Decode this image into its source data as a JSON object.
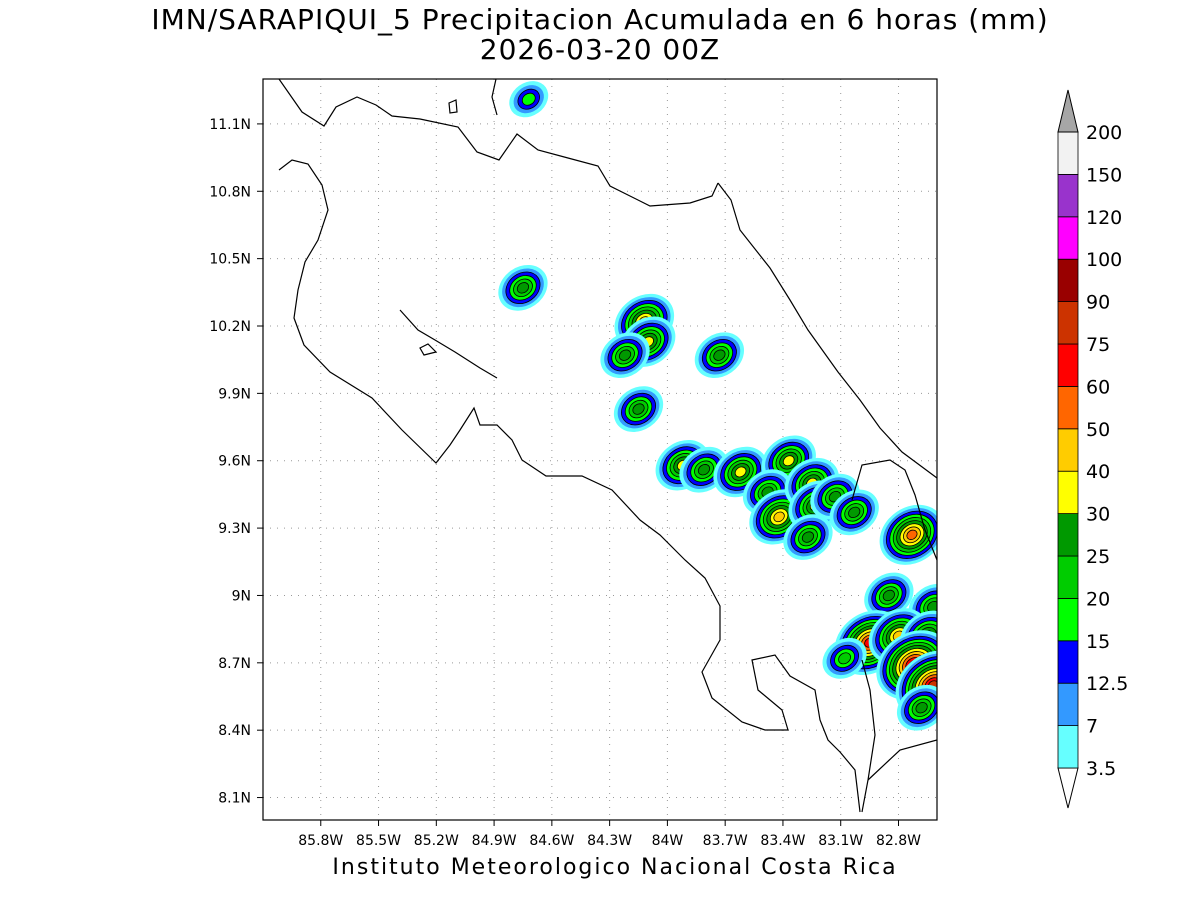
{
  "title": {
    "line1": "IMN/SARAPIQUI_5 Precipitacion Acumulada en 6 horas (mm)",
    "line2": "2026-03-20 00Z"
  },
  "footer": "Instituto Meteorologico Nacional Costa Rica",
  "map": {
    "lon_range": [
      -86.1,
      -82.6
    ],
    "lat_range": [
      8.0,
      11.3
    ],
    "lon_tick_labels": [
      "85.8W",
      "85.5W",
      "85.2W",
      "84.9W",
      "84.6W",
      "84.3W",
      "84W",
      "83.7W",
      "83.4W",
      "83.1W",
      "82.8W"
    ],
    "lat_tick_labels": [
      "11.1N",
      "10.8N",
      "10.5N",
      "10.2N",
      "9.9N",
      "9.6N",
      "9.3N",
      "9N",
      "8.7N",
      "8.4N",
      "8.1N"
    ],
    "grid": true
  },
  "colorbar": {
    "labels": [
      "3.5",
      "7",
      "12.5",
      "15",
      "20",
      "25",
      "30",
      "40",
      "50",
      "60",
      "75",
      "90",
      "100",
      "120",
      "150",
      "200"
    ],
    "colors": [
      "#ffffff",
      "#66ffff",
      "#3399ff",
      "#0000ff",
      "#00ff00",
      "#00cc00",
      "#009900",
      "#ffff00",
      "#ffcc00",
      "#ff6600",
      "#ff0000",
      "#cc3300",
      "#990000",
      "#ff00ff",
      "#9933cc",
      "#f2f2f2",
      "#a6a6a6"
    ]
  },
  "precip_cells": [
    {
      "lon": -84.72,
      "lat": 11.21,
      "intensity": "15"
    },
    {
      "lon": -84.75,
      "lat": 10.37,
      "intensity": "25"
    },
    {
      "lon": -84.12,
      "lat": 10.22,
      "intensity": "40"
    },
    {
      "lon": -84.1,
      "lat": 10.13,
      "intensity": "30"
    },
    {
      "lon": -84.22,
      "lat": 10.07,
      "intensity": "25"
    },
    {
      "lon": -83.73,
      "lat": 10.07,
      "intensity": "25"
    },
    {
      "lon": -84.15,
      "lat": 9.83,
      "intensity": "25"
    },
    {
      "lon": -83.92,
      "lat": 9.58,
      "intensity": "30"
    },
    {
      "lon": -83.81,
      "lat": 9.56,
      "intensity": "25"
    },
    {
      "lon": -83.62,
      "lat": 9.55,
      "intensity": "30"
    },
    {
      "lon": -83.37,
      "lat": 9.6,
      "intensity": "30"
    },
    {
      "lon": -83.48,
      "lat": 9.46,
      "intensity": "25"
    },
    {
      "lon": -83.42,
      "lat": 9.35,
      "intensity": "40"
    },
    {
      "lon": -83.25,
      "lat": 9.5,
      "intensity": "30"
    },
    {
      "lon": -83.23,
      "lat": 9.4,
      "intensity": "30"
    },
    {
      "lon": -83.13,
      "lat": 9.44,
      "intensity": "25"
    },
    {
      "lon": -83.27,
      "lat": 9.26,
      "intensity": "25"
    },
    {
      "lon": -83.03,
      "lat": 9.37,
      "intensity": "25"
    },
    {
      "lon": -82.73,
      "lat": 9.27,
      "intensity": "50"
    },
    {
      "lon": -82.85,
      "lat": 9.0,
      "intensity": "25"
    },
    {
      "lon": -82.62,
      "lat": 8.95,
      "intensity": "25"
    },
    {
      "lon": -82.95,
      "lat": 8.79,
      "intensity": "60"
    },
    {
      "lon": -82.8,
      "lat": 8.82,
      "intensity": "40"
    },
    {
      "lon": -82.65,
      "lat": 8.82,
      "intensity": "30"
    },
    {
      "lon": -82.72,
      "lat": 8.69,
      "intensity": "75"
    },
    {
      "lon": -82.62,
      "lat": 8.6,
      "intensity": "75"
    },
    {
      "lon": -82.68,
      "lat": 8.5,
      "intensity": "25"
    },
    {
      "lon": -83.08,
      "lat": 8.72,
      "intensity": "20"
    }
  ]
}
